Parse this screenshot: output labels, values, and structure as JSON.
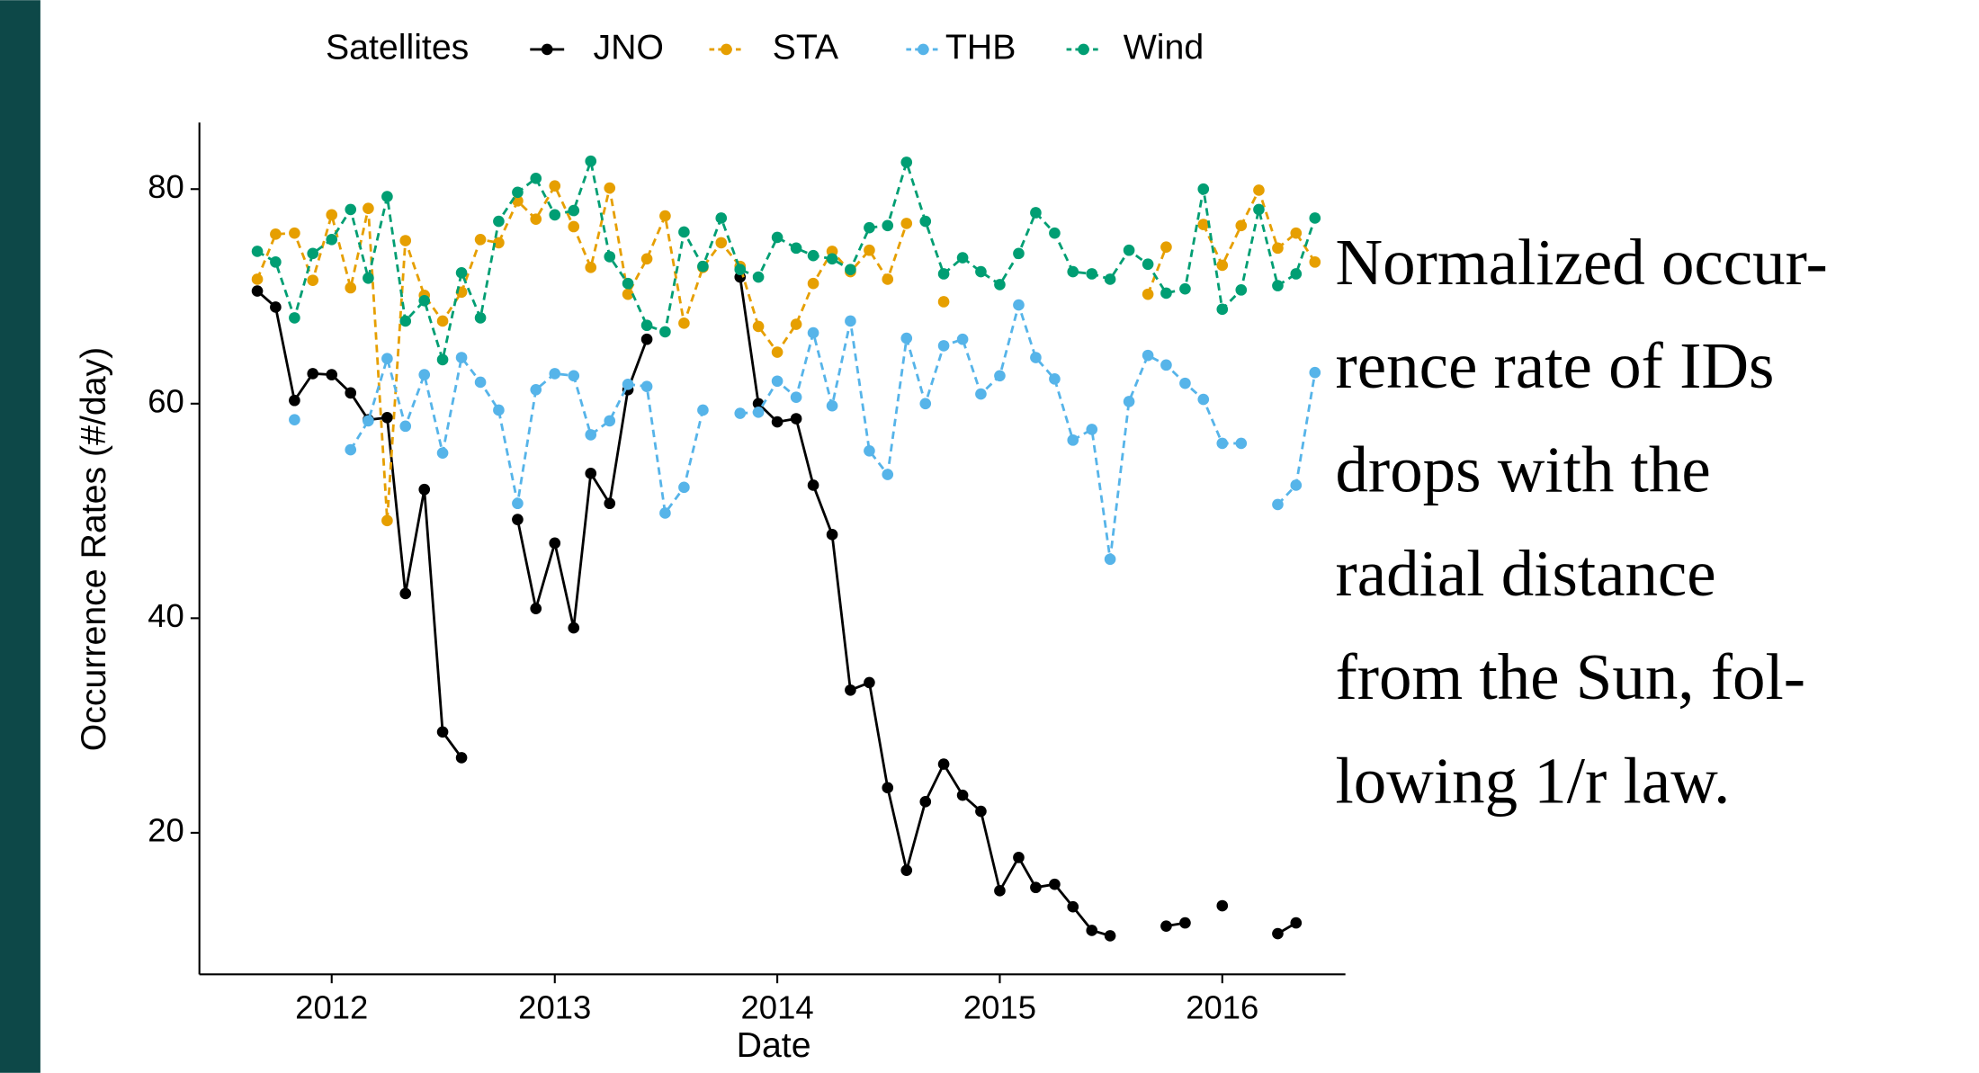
{
  "chart_data": {
    "type": "line",
    "legend_title": "Satellites",
    "legend": "top",
    "xlabel": "Date",
    "ylabel": "Occurrence Rates (#/day)",
    "annotations": [
      "Normalized occur-",
      "rence rate of IDs",
      "drops with the",
      "radial distance",
      "from the Sun, fol-",
      "lowing 1/r law."
    ],
    "xlim": [
      "2011-05-29",
      "2016-07-21"
    ],
    "xticks": [
      {
        "value": "2012-01-01",
        "label": "2012"
      },
      {
        "value": "2013-01-01",
        "label": "2013"
      },
      {
        "value": "2014-01-01",
        "label": "2014"
      },
      {
        "value": "2015-01-01",
        "label": "2015"
      },
      {
        "value": "2016-01-01",
        "label": "2016"
      }
    ],
    "ylim": [
      6.8,
      86.2
    ],
    "yticks": [
      20,
      40,
      60,
      80
    ],
    "grid": false,
    "x": [
      "2011-09",
      "2011-10",
      "2011-11",
      "2011-12",
      "2012-01",
      "2012-02",
      "2012-03",
      "2012-04",
      "2012-05",
      "2012-06",
      "2012-07",
      "2012-08",
      "2012-09",
      "2012-10",
      "2012-11",
      "2012-12",
      "2013-01",
      "2013-02",
      "2013-03",
      "2013-04",
      "2013-05",
      "2013-06",
      "2013-07",
      "2013-08",
      "2013-09",
      "2013-10",
      "2013-11",
      "2013-12",
      "2014-01",
      "2014-02",
      "2014-03",
      "2014-04",
      "2014-05",
      "2014-06",
      "2014-07",
      "2014-08",
      "2014-09",
      "2014-10",
      "2014-11",
      "2014-12",
      "2015-01",
      "2015-02",
      "2015-03",
      "2015-04",
      "2015-05",
      "2015-06",
      "2015-07",
      "2015-08",
      "2015-09",
      "2015-10",
      "2015-11",
      "2015-12",
      "2016-01",
      "2016-02",
      "2016-03",
      "2016-04",
      "2016-05",
      "2016-06"
    ],
    "series": [
      {
        "name": "JNO",
        "color": "#000000",
        "dashed": false,
        "values": [
          70.5,
          69,
          60.3,
          62.8,
          62.7,
          61,
          58.5,
          58.7,
          42.3,
          52,
          29.4,
          27,
          null,
          null,
          49.2,
          40.9,
          47,
          39.1,
          53.5,
          50.7,
          61.3,
          66,
          null,
          null,
          null,
          null,
          71.8,
          60,
          58.3,
          58.6,
          52.4,
          47.8,
          33.3,
          34,
          24.2,
          16.5,
          22.9,
          26.4,
          23.5,
          22,
          14.6,
          17.7,
          14.9,
          15.2,
          13.1,
          10.9,
          10.4,
          null,
          null,
          11.3,
          11.6,
          null,
          13.2,
          null,
          null,
          10.6,
          11.6,
          null
        ]
      },
      {
        "name": "STA",
        "color": "#E69F00",
        "dashed": true,
        "values": [
          71.6,
          75.8,
          75.9,
          71.5,
          77.6,
          70.8,
          78.2,
          49.1,
          75.2,
          70.1,
          67.7,
          70.4,
          75.3,
          75,
          78.9,
          77.2,
          80.3,
          76.5,
          72.7,
          80.1,
          70.2,
          73.5,
          77.5,
          67.5,
          72.7,
          75,
          72.8,
          67.2,
          64.8,
          67.4,
          71.2,
          74.2,
          72.3,
          74.3,
          71.6,
          76.8,
          null,
          69.5,
          null,
          null,
          null,
          null,
          null,
          null,
          null,
          null,
          null,
          null,
          70.2,
          74.6,
          null,
          76.7,
          72.9,
          76.6,
          79.9,
          74.5,
          75.9,
          73.2
        ]
      },
      {
        "name": "THB",
        "color": "#56B4E9",
        "dashed": true,
        "values": [
          null,
          null,
          58.5,
          null,
          null,
          55.7,
          58.4,
          64.2,
          57.9,
          62.7,
          55.4,
          64.3,
          62,
          59.4,
          50.7,
          61.3,
          62.8,
          62.6,
          57.1,
          58.4,
          61.8,
          61.6,
          49.8,
          52.2,
          59.4,
          null,
          59.1,
          59.2,
          62.1,
          60.6,
          66.6,
          59.8,
          67.7,
          55.6,
          53.4,
          66.1,
          60,
          65.4,
          66,
          60.9,
          62.6,
          69.2,
          64.3,
          62.3,
          56.6,
          57.6,
          45.5,
          60.2,
          64.5,
          63.6,
          61.9,
          60.4,
          56.3,
          56.3,
          null,
          50.6,
          52.4,
          62.9
        ]
      },
      {
        "name": "Wind",
        "color": "#009E73",
        "dashed": true,
        "values": [
          74.2,
          73.2,
          68,
          74,
          75.3,
          78.1,
          71.7,
          79.3,
          67.7,
          69.6,
          64.1,
          72.2,
          68,
          77,
          79.7,
          81,
          77.6,
          78,
          82.6,
          73.7,
          71.2,
          67.3,
          66.7,
          76,
          72.8,
          77.3,
          72.5,
          71.8,
          75.5,
          74.5,
          73.8,
          73.5,
          72.5,
          76.4,
          76.6,
          82.5,
          77,
          72.1,
          73.6,
          72.3,
          71.1,
          74,
          77.8,
          75.9,
          72.3,
          72.1,
          71.6,
          74.3,
          73,
          70.3,
          70.7,
          80,
          68.8,
          70.6,
          78.1,
          71,
          72.1,
          77.3
        ]
      }
    ]
  }
}
